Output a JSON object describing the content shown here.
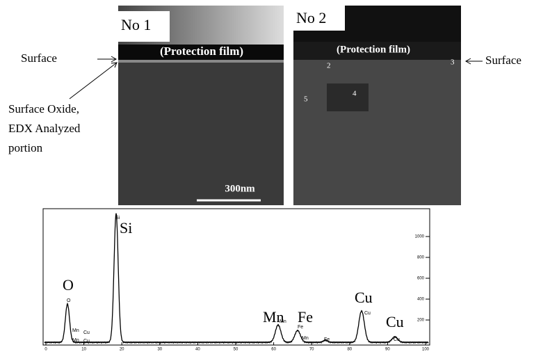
{
  "micrograph_1": {
    "label": "No 1",
    "film": "(Protection film)",
    "scale": "300nm"
  },
  "micrograph_2": {
    "label": "No 2",
    "film": "(Protection film)",
    "points": [
      "2",
      "3",
      "4",
      "5"
    ]
  },
  "annotations": {
    "surface_left": "Surface",
    "surface_right": "Surface",
    "oxide": [
      "Surface Oxide,",
      "EDX Analyzed",
      "portion"
    ]
  },
  "spectrum": {
    "peak_labels": [
      "O",
      "Si",
      "Mn",
      "Fe",
      "Cu",
      "Cu"
    ],
    "small_labels": [
      "O",
      "Si",
      "Mn",
      "Cu",
      "Mn",
      "Cu",
      "Mn",
      "Fe",
      "Mn",
      "Fe",
      "Cu",
      "Cu"
    ],
    "x_ticks": [
      "0",
      "10",
      "20",
      "30",
      "40",
      "50",
      "60",
      "70",
      "80",
      "90",
      "100"
    ],
    "y_ticks": [
      "1000",
      "800",
      "600",
      "400",
      "200"
    ]
  }
}
